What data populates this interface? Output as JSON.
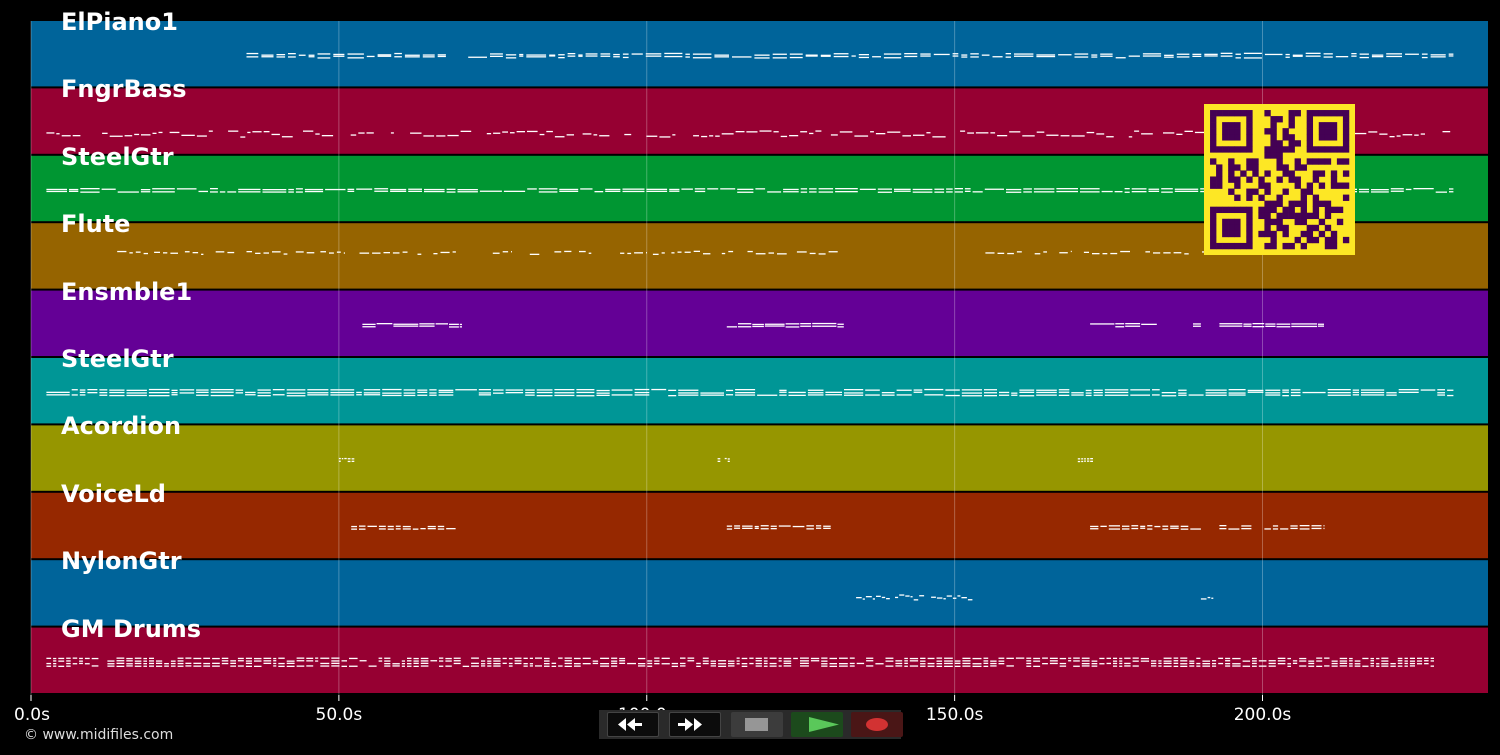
{
  "tracks": [
    {
      "name": "ElPiano1",
      "color": "#00649a"
    },
    {
      "name": "FngrBass",
      "color": "#960032"
    },
    {
      "name": "SteelGtr",
      "color": "#009632"
    },
    {
      "name": "Flute",
      "color": "#966400"
    },
    {
      "name": "Ensmble1",
      "color": "#640096"
    },
    {
      "name": "SteelGtr",
      "color": "#009696"
    },
    {
      "name": "Acordion",
      "color": "#969600"
    },
    {
      "name": "VoiceLd",
      "color": "#962800"
    },
    {
      "name": "NylonGtr",
      "color": "#00649a"
    },
    {
      "name": "GM Drums",
      "color": "#960032"
    }
  ],
  "timeline": {
    "ticks": [
      "0.0s",
      "50.0s",
      "100.0s",
      "150.0s",
      "200.0s"
    ],
    "tick_values": [
      0,
      50,
      100,
      150,
      200
    ],
    "end_seconds": 231
  },
  "transport": {
    "buttons": [
      "rewind",
      "fast-forward",
      "stop",
      "play",
      "record"
    ],
    "play_color": "#5ac85a",
    "record_color": "#d23232",
    "stop_color": "#969696"
  },
  "copyright": "© www.midifiles.com",
  "qr_colors": {
    "light": "#fde725",
    "dark": "#440154"
  }
}
